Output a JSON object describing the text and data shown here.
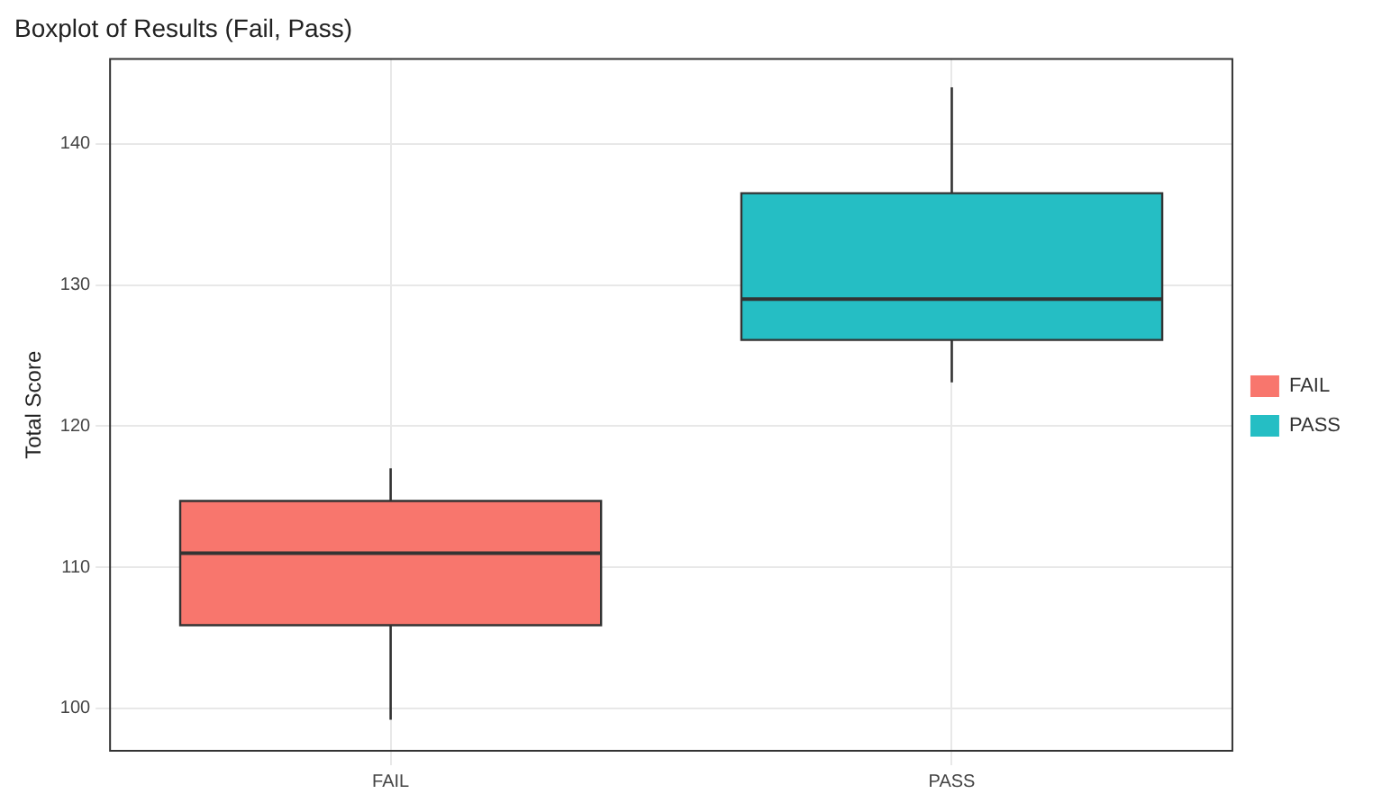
{
  "chart_data": {
    "type": "box",
    "title": "Boxplot of Results (Fail, Pass)",
    "ylabel": "Total Score",
    "categories": [
      "FAIL",
      "PASS"
    ],
    "series": [
      {
        "name": "FAIL",
        "color": "#f8766d",
        "boxes": [
          {
            "low": 99.2,
            "q1": 105.9,
            "median": 111,
            "q3": 114.7,
            "high": 117
          },
          null
        ]
      },
      {
        "name": "PASS",
        "color": "#25bec4",
        "boxes": [
          null,
          {
            "low": 123.1,
            "q1": 126.1,
            "median": 129,
            "q3": 136.5,
            "high": 144
          }
        ]
      }
    ],
    "ylim": [
      97,
      146
    ],
    "yticks": [
      100,
      110,
      120,
      130,
      140
    ],
    "grid": true,
    "legend": "right"
  }
}
